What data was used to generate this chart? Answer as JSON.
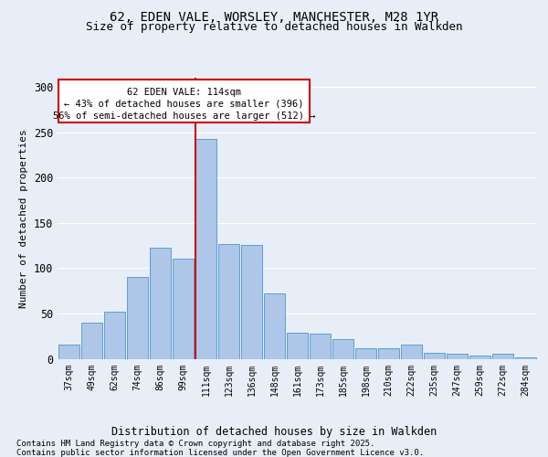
{
  "title1": "62, EDEN VALE, WORSLEY, MANCHESTER, M28 1YR",
  "title2": "Size of property relative to detached houses in Walkden",
  "xlabel": "Distribution of detached houses by size in Walkden",
  "ylabel": "Number of detached properties",
  "footer1": "Contains HM Land Registry data © Crown copyright and database right 2025.",
  "footer2": "Contains public sector information licensed under the Open Government Licence v3.0.",
  "annotation_line1": "62 EDEN VALE: 114sqm",
  "annotation_line2": "← 43% of detached houses are smaller (396)",
  "annotation_line3": "56% of semi-detached houses are larger (512) →",
  "categories": [
    "37sqm",
    "49sqm",
    "62sqm",
    "74sqm",
    "86sqm",
    "99sqm",
    "111sqm",
    "123sqm",
    "136sqm",
    "148sqm",
    "161sqm",
    "173sqm",
    "185sqm",
    "198sqm",
    "210sqm",
    "222sqm",
    "235sqm",
    "247sqm",
    "259sqm",
    "272sqm",
    "284sqm"
  ],
  "values": [
    16,
    40,
    52,
    90,
    122,
    110,
    242,
    127,
    126,
    72,
    29,
    28,
    22,
    12,
    12,
    16,
    7,
    6,
    4,
    6,
    2
  ],
  "bar_color": "#aec6e8",
  "bar_edge_color": "#5a9fd4",
  "vline_color": "#cc0000",
  "vline_x_index": 6,
  "annotation_box_color": "#cc0000",
  "annotation_bg_color": "#ffffff",
  "ylim": [
    0,
    310
  ],
  "yticks": [
    0,
    50,
    100,
    150,
    200,
    250,
    300
  ],
  "bg_color": "#e8eef7",
  "plot_bg_color": "#e8eef7",
  "grid_color": "#ffffff"
}
